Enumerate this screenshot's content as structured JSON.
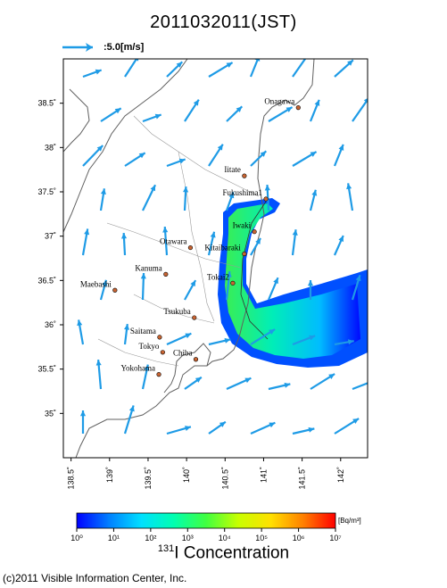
{
  "title": "2011032011(JST)",
  "scale_label": ":5.0[m/s]",
  "colors": {
    "arrow": "#1e9be6",
    "land": "#ffffff",
    "coast": "#606060",
    "frame": "#000000",
    "station": "#c86432"
  },
  "map": {
    "lon_range": [
      138.4,
      142.35
    ],
    "lat_range": [
      34.5,
      39.0
    ],
    "lon_ticks": [
      "138.5˚",
      "139˚",
      "139.5˚",
      "140˚",
      "140.5˚",
      "141˚",
      "141.5˚",
      "142˚"
    ],
    "lat_ticks": [
      "35˚",
      "35.5˚",
      "36˚",
      "36.5˚",
      "37˚",
      "37.5˚",
      "38˚",
      "38.5˚"
    ],
    "cities": [
      {
        "name": "Onagawa",
        "lon": 141.45,
        "lat": 38.45
      },
      {
        "name": "Iitate",
        "lon": 140.75,
        "lat": 37.68
      },
      {
        "name": "Fukushima1",
        "lon": 141.03,
        "lat": 37.42
      },
      {
        "name": "Iwaki",
        "lon": 140.88,
        "lat": 37.05
      },
      {
        "name": "Otawara",
        "lon": 140.05,
        "lat": 36.87
      },
      {
        "name": "Kitaibaraki",
        "lon": 140.75,
        "lat": 36.8
      },
      {
        "name": "Kanuma",
        "lon": 139.73,
        "lat": 36.57
      },
      {
        "name": "Tokai2",
        "lon": 140.6,
        "lat": 36.47
      },
      {
        "name": "Maebashi",
        "lon": 139.07,
        "lat": 36.39
      },
      {
        "name": "Tsukuba",
        "lon": 140.1,
        "lat": 36.08
      },
      {
        "name": "Saitama",
        "lon": 139.65,
        "lat": 35.86
      },
      {
        "name": "Tokyo",
        "lon": 139.69,
        "lat": 35.69
      },
      {
        "name": "Chiba",
        "lon": 140.12,
        "lat": 35.61
      },
      {
        "name": "Yokohama",
        "lon": 139.64,
        "lat": 35.44
      }
    ]
  },
  "colorbar": {
    "unit": "[Bq/m³]",
    "tick_labels": [
      "10⁰",
      "10¹",
      "10²",
      "10³",
      "10⁴",
      "10⁵",
      "10⁶",
      "10⁷"
    ],
    "stops": [
      "#0000ff",
      "#0080ff",
      "#00e0ff",
      "#00ffb0",
      "#40ff40",
      "#c8ff00",
      "#ffe000",
      "#ff8000",
      "#ff0000"
    ]
  },
  "concentration_label": {
    "isotope": "131",
    "text": "I Concentration"
  },
  "credit": "(c)2011 Visible Information Center, Inc."
}
